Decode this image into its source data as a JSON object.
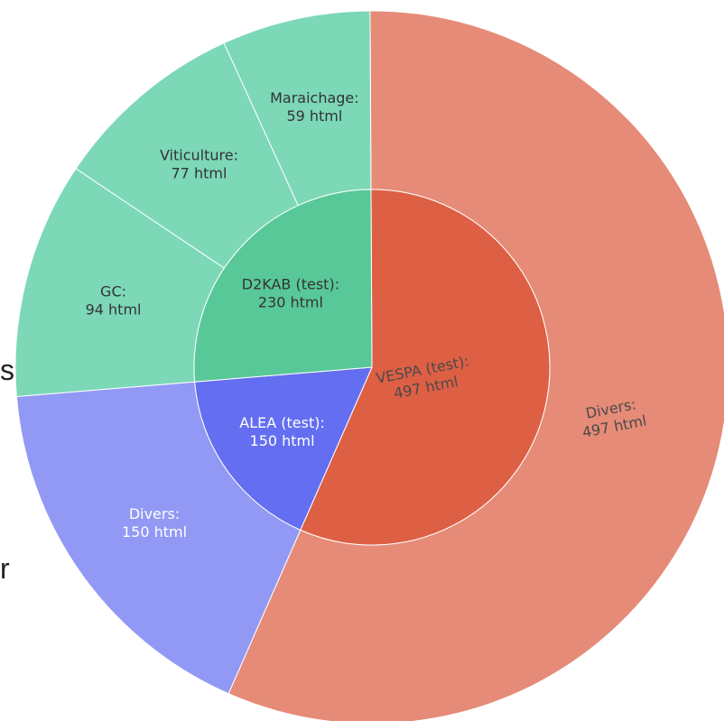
{
  "side_fragments": [
    "s",
    "re"
  ],
  "chart_data": {
    "type": "sunburst",
    "title": "",
    "unit": "html",
    "slice_border": "#ffffff",
    "nodes": [
      {
        "id": "vespa",
        "label": "VESPA (test):",
        "value": 497,
        "value_text": "497 html",
        "ring": "inner",
        "color": "#dd5f44",
        "text_color": "#4a4a4a",
        "text_rotation_deg": -11
      },
      {
        "id": "vespa-divers",
        "parent": "vespa",
        "label": "Divers:",
        "value": 497,
        "value_text": "497 html",
        "ring": "outer",
        "color": "#e58b77",
        "text_color": "#4a4a4a",
        "text_rotation_deg": -11
      },
      {
        "id": "alea",
        "label": "ALEA (test):",
        "value": 150,
        "value_text": "150 html",
        "ring": "inner",
        "color": "#636ef0",
        "text_color": "#ffffff",
        "text_rotation_deg": 0
      },
      {
        "id": "alea-divers",
        "parent": "alea",
        "label": "Divers:",
        "value": 150,
        "value_text": "150 html",
        "ring": "outer",
        "color": "#9199f4",
        "text_color": "#ffffff",
        "text_rotation_deg": 0
      },
      {
        "id": "d2kab",
        "label": "D2KAB (test):",
        "value": 230,
        "value_text": "230 html",
        "ring": "inner",
        "color": "#59c898",
        "text_color": "#333333",
        "text_rotation_deg": 0
      },
      {
        "id": "d2kab-maraichage",
        "parent": "d2kab",
        "label": "Maraichage:",
        "value": 59,
        "value_text": "59 html",
        "ring": "outer",
        "color": "#7cd8b7",
        "text_color": "#333333",
        "text_rotation_deg": 0
      },
      {
        "id": "d2kab-viticulture",
        "parent": "d2kab",
        "label": "Viticulture:",
        "value": 77,
        "value_text": "77 html",
        "ring": "outer",
        "color": "#7cd8b7",
        "text_color": "#333333",
        "text_rotation_deg": 0
      },
      {
        "id": "d2kab-gc",
        "parent": "d2kab",
        "label": "GC:",
        "value": 94,
        "value_text": "94 html",
        "ring": "outer",
        "color": "#7cd8b7",
        "text_color": "#333333",
        "text_rotation_deg": 0
      }
    ]
  }
}
